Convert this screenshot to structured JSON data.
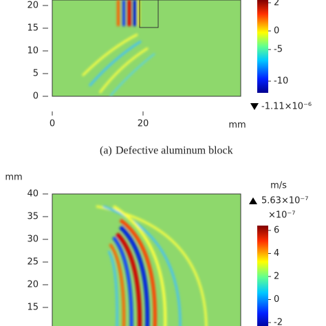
{
  "panel_a": {
    "y_ticks": [
      "0",
      "5",
      "10",
      "15",
      "20"
    ],
    "x_ticks": [
      "0",
      "20"
    ],
    "x_unit": "mm",
    "colorbar_ticks": [
      "2",
      "0",
      "-5",
      "-10"
    ],
    "min_marker": "-1.11×10⁻⁶",
    "caption_label": "(a)",
    "caption": "Defective aluminum block"
  },
  "panel_b": {
    "y_unit": "mm",
    "y_ticks": [
      "40",
      "35",
      "30",
      "25",
      "20",
      "15"
    ],
    "colorbar_unit": "m/s",
    "max_marker": "5.63×10⁻⁷",
    "colorbar_scale": "×10⁻⁷",
    "colorbar_ticks": [
      "6",
      "4",
      "2",
      "0",
      "-2"
    ]
  }
}
